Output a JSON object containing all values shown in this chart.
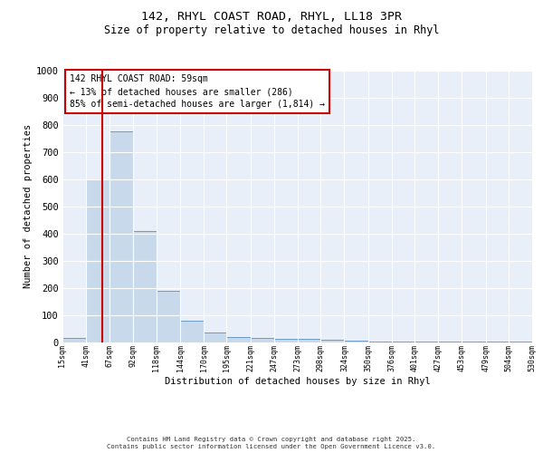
{
  "title1": "142, RHYL COAST ROAD, RHYL, LL18 3PR",
  "title2": "Size of property relative to detached houses in Rhyl",
  "xlabel": "Distribution of detached houses by size in Rhyl",
  "ylabel": "Number of detached properties",
  "bins": [
    15,
    41,
    67,
    92,
    118,
    144,
    170,
    195,
    221,
    247,
    273,
    298,
    324,
    350,
    376,
    401,
    427,
    453,
    479,
    504,
    530
  ],
  "bar_heights": [
    15,
    600,
    775,
    410,
    190,
    80,
    35,
    20,
    15,
    12,
    12,
    8,
    5,
    3,
    2,
    1,
    1,
    1,
    1,
    1
  ],
  "bar_color": "#c9d9ec",
  "bar_edgecolor": "#5a8fc3",
  "vline_x": 59,
  "vline_color": "#cc0000",
  "annotation_text": "142 RHYL COAST ROAD: 59sqm\n← 13% of detached houses are smaller (286)\n85% of semi-detached houses are larger (1,814) →",
  "annotation_box_color": "#ffffff",
  "annotation_box_edgecolor": "#cc0000",
  "ylim": [
    0,
    1000
  ],
  "yticks": [
    0,
    100,
    200,
    300,
    400,
    500,
    600,
    700,
    800,
    900,
    1000
  ],
  "background_color": "#e8eff8",
  "grid_color": "#ffffff",
  "footer_line1": "Contains HM Land Registry data © Crown copyright and database right 2025.",
  "footer_line2": "Contains public sector information licensed under the Open Government Licence v3.0.",
  "fig_width": 6.0,
  "fig_height": 5.0,
  "fig_dpi": 100
}
